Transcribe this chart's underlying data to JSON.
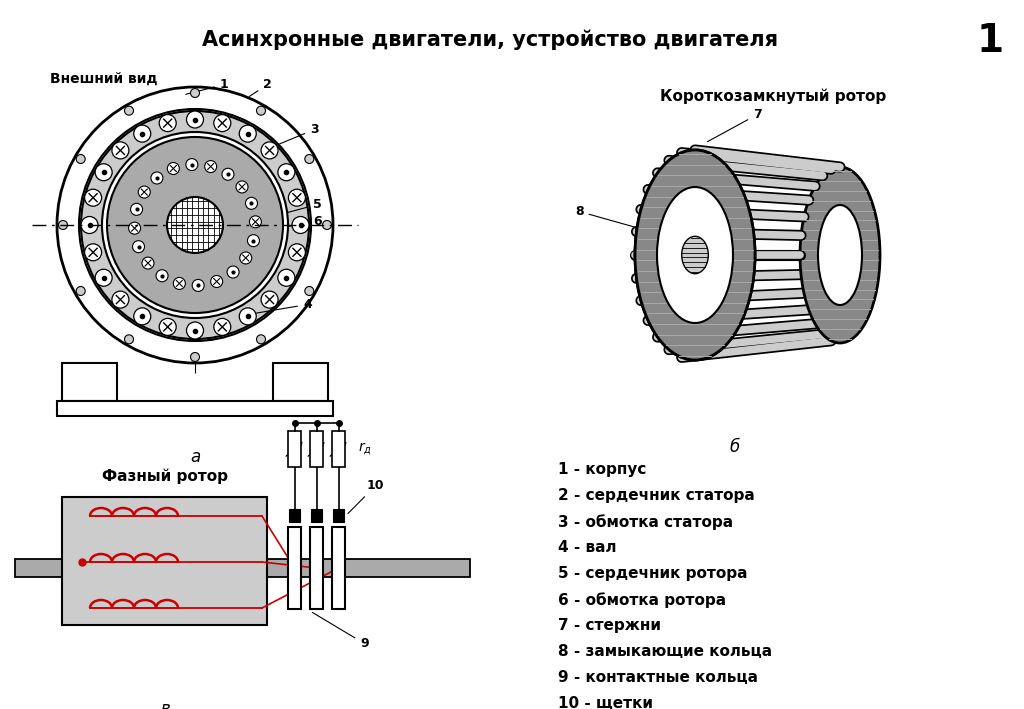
{
  "title": "Асинхронные двигатели, устройство двигателя",
  "title_number": "1",
  "bg_color": "#ffffff",
  "label_a": "а",
  "label_b": "б",
  "label_v": "в",
  "label_front_view": "Внешний вид",
  "label_short_rotor": "Короткозамкнутый ротор",
  "label_phase_rotor": "Фазный ротор",
  "legend": [
    "1 - корпус",
    "2 - сердечник статора",
    "3 - обмотка статора",
    "4 - вал",
    "5 - сердечник ротора",
    "6 - обмотка ротора",
    "7 - стержни",
    "8 - замыкающие кольца",
    "9 - контактные кольца",
    "10 - щетки"
  ],
  "gray_light": "#cccccc",
  "gray_dark": "#888888",
  "gray_medium": "#aaaaaa",
  "red_color": "#cc0000",
  "black_color": "#000000"
}
